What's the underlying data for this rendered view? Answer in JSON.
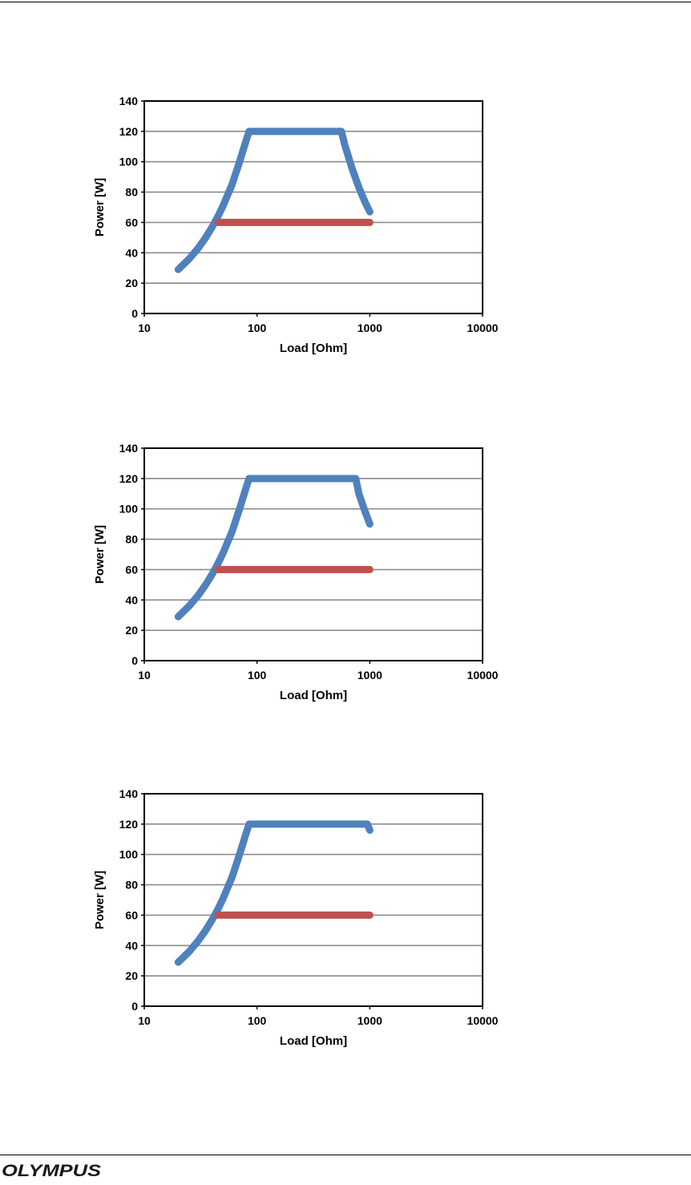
{
  "chart_data": [
    {
      "type": "line",
      "xscale": "log",
      "xlim": [
        10,
        10000
      ],
      "ylim": [
        0,
        140
      ],
      "xlabel": "Load [Ohm]",
      "ylabel": "Power [W]",
      "xticks": [
        "10",
        "100",
        "1000",
        "10000"
      ],
      "yticks": [
        "0",
        "20",
        "40",
        "60",
        "80",
        "100",
        "120",
        "140"
      ],
      "grid": true,
      "series": [
        {
          "color": "#4f81bd",
          "x": [
            20,
            25,
            30,
            35,
            40,
            45,
            50,
            60,
            70,
            80,
            85,
            100,
            200,
            300,
            400,
            500,
            560,
            600,
            700,
            800,
            900,
            1000
          ],
          "y": [
            29,
            36,
            43,
            50,
            57,
            64,
            71,
            85,
            100,
            114,
            120,
            120,
            120,
            120,
            120,
            120,
            120,
            111,
            95,
            83,
            74,
            67
          ]
        },
        {
          "color": "#c0504d",
          "x": [
            45,
            1000
          ],
          "y": [
            60,
            60
          ]
        }
      ]
    },
    {
      "type": "line",
      "xscale": "log",
      "xlim": [
        10,
        10000
      ],
      "ylim": [
        0,
        140
      ],
      "xlabel": "Load [Ohm]",
      "ylabel": "Power [W]",
      "xticks": [
        "10",
        "100",
        "1000",
        "10000"
      ],
      "yticks": [
        "0",
        "20",
        "40",
        "60",
        "80",
        "100",
        "120",
        "140"
      ],
      "grid": true,
      "series": [
        {
          "color": "#4f81bd",
          "x": [
            20,
            25,
            30,
            35,
            40,
            45,
            50,
            60,
            70,
            80,
            85,
            100,
            200,
            400,
            600,
            750,
            800,
            900,
            1000
          ],
          "y": [
            29,
            36,
            43,
            50,
            57,
            64,
            71,
            85,
            100,
            114,
            120,
            120,
            120,
            120,
            120,
            120,
            110,
            99,
            90
          ]
        },
        {
          "color": "#c0504d",
          "x": [
            45,
            1000
          ],
          "y": [
            60,
            60
          ]
        }
      ]
    },
    {
      "type": "line",
      "xscale": "log",
      "xlim": [
        10,
        10000
      ],
      "ylim": [
        0,
        140
      ],
      "xlabel": "Load [Ohm]",
      "ylabel": "Power [W]",
      "xticks": [
        "10",
        "100",
        "1000",
        "10000"
      ],
      "yticks": [
        "0",
        "20",
        "40",
        "60",
        "80",
        "100",
        "120",
        "140"
      ],
      "grid": true,
      "series": [
        {
          "color": "#4f81bd",
          "x": [
            20,
            25,
            30,
            35,
            40,
            45,
            50,
            60,
            70,
            80,
            85,
            100,
            200,
            400,
            600,
            800,
            950,
            1000
          ],
          "y": [
            29,
            36,
            43,
            50,
            57,
            64,
            71,
            85,
            100,
            114,
            120,
            120,
            120,
            120,
            120,
            120,
            120,
            116
          ]
        },
        {
          "color": "#c0504d",
          "x": [
            45,
            1000
          ],
          "y": [
            60,
            60
          ]
        }
      ]
    }
  ],
  "footer": {
    "logo_text": "OLYMPUS"
  }
}
